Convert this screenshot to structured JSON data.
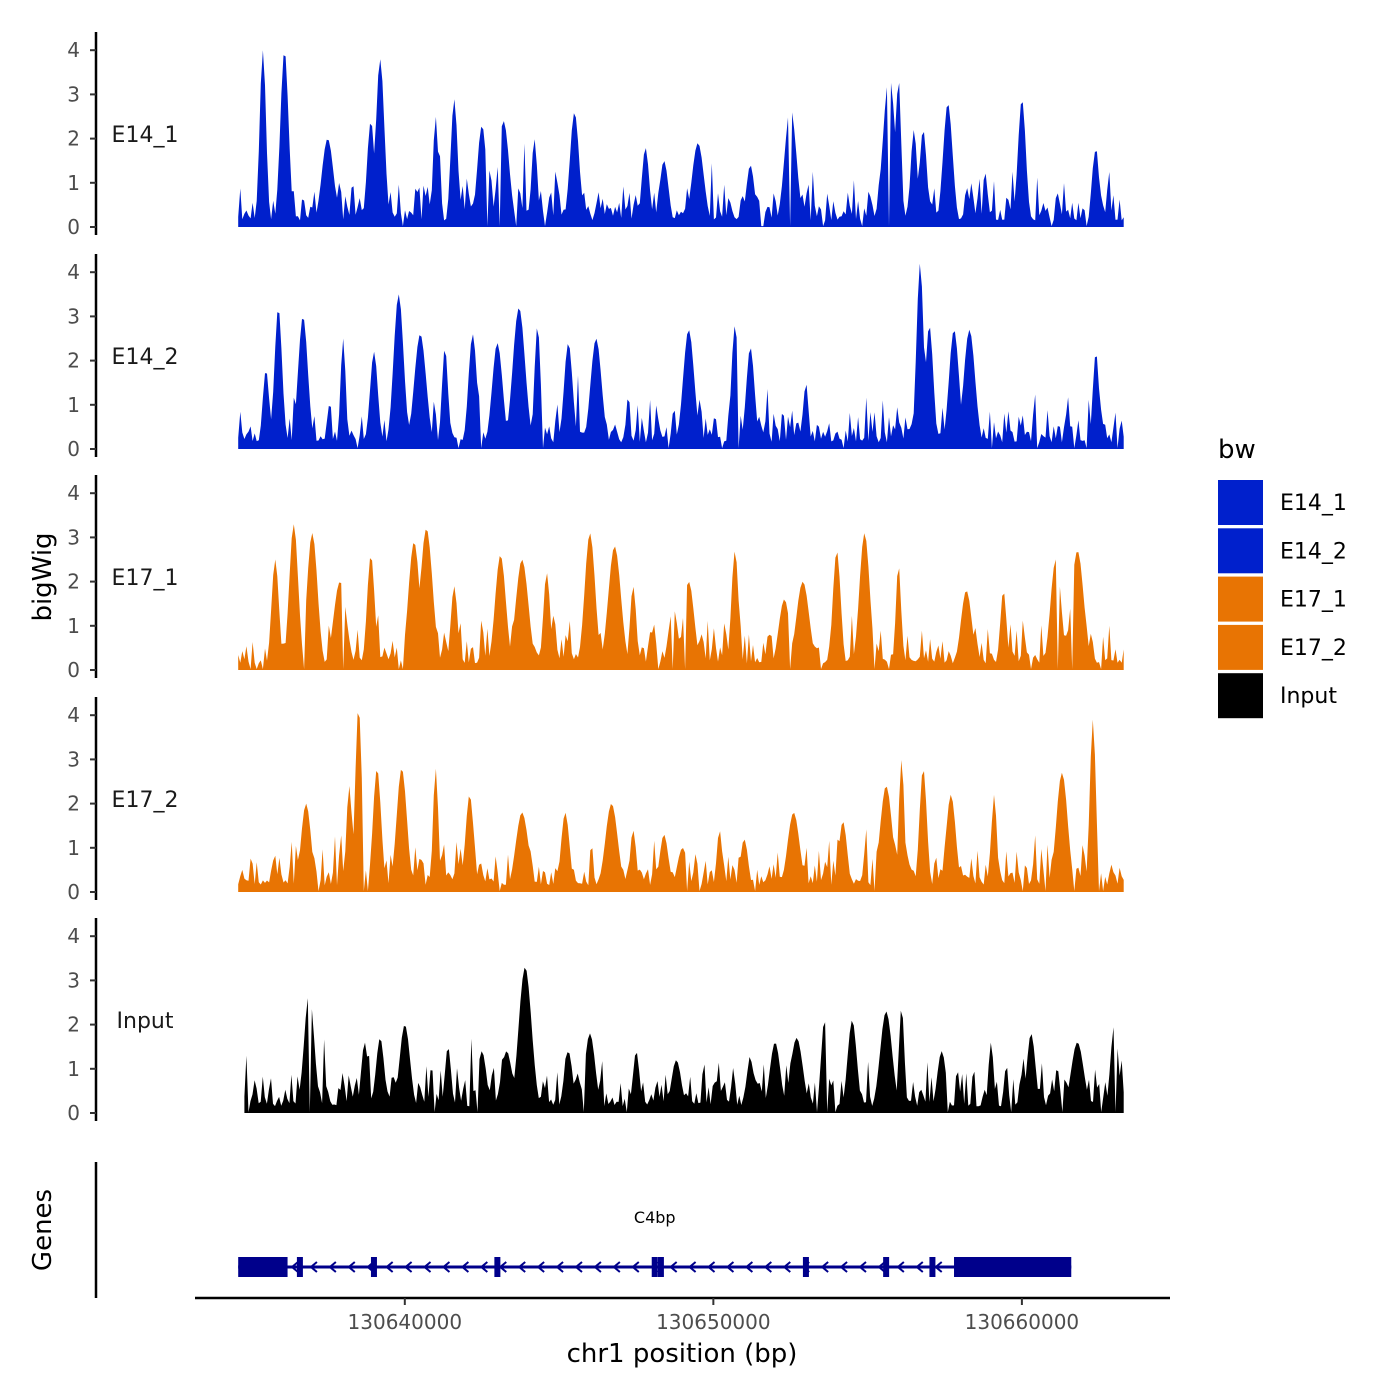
{
  "chart_data": {
    "type": "area",
    "ylabel": "bigWig",
    "xlabel": "chr1 position (bp)",
    "genes_label": "Genes",
    "ylim": [
      0,
      4.4
    ],
    "xlim": [
      130633200,
      130664800
    ],
    "y_ticks": [
      "0",
      "1",
      "2",
      "3",
      "4"
    ],
    "x_ticks": [
      {
        "value": 130640000,
        "label": "130640000"
      },
      {
        "value": 130650000,
        "label": "130650000"
      },
      {
        "value": 130660000,
        "label": "130660000"
      }
    ],
    "series": [
      {
        "name": "E14_1",
        "label": "E14_1",
        "color": "#0020CC",
        "start": 130634600,
        "end": 130663300,
        "seed": 11,
        "peaks": [
          [
            130635400,
            4.0
          ],
          [
            130636100,
            4.0
          ],
          [
            130637500,
            2.0
          ],
          [
            130638900,
            2.4
          ],
          [
            130639200,
            3.8
          ],
          [
            130641000,
            2.5
          ],
          [
            130641600,
            2.9
          ],
          [
            130642500,
            2.3
          ],
          [
            130643200,
            2.4
          ],
          [
            130644200,
            2.0
          ],
          [
            130645500,
            2.6
          ],
          [
            130647800,
            1.8
          ],
          [
            130648400,
            1.5
          ],
          [
            130649500,
            1.9
          ],
          [
            130651200,
            1.4
          ],
          [
            130652500,
            2.7
          ],
          [
            130655700,
            3.4
          ],
          [
            130656000,
            3.4
          ],
          [
            130656500,
            2.2
          ],
          [
            130656800,
            2.2
          ],
          [
            130657600,
            2.8
          ],
          [
            130660000,
            2.9
          ],
          [
            130662400,
            1.8
          ]
        ]
      },
      {
        "name": "E14_2",
        "label": "E14_2",
        "color": "#0020CC",
        "start": 130634600,
        "end": 130663300,
        "seed": 23,
        "peaks": [
          [
            130635500,
            1.8
          ],
          [
            130635900,
            3.2
          ],
          [
            130636700,
            3.0
          ],
          [
            130638000,
            2.5
          ],
          [
            130639000,
            2.2
          ],
          [
            130639800,
            3.5
          ],
          [
            130640500,
            2.6
          ],
          [
            130641300,
            2.3
          ],
          [
            130642200,
            2.6
          ],
          [
            130643000,
            2.4
          ],
          [
            130643700,
            3.2
          ],
          [
            130644300,
            2.8
          ],
          [
            130645300,
            2.4
          ],
          [
            130646200,
            2.5
          ],
          [
            130648200,
            0.5
          ],
          [
            130649200,
            2.7
          ],
          [
            130650700,
            2.8
          ],
          [
            130651200,
            2.3
          ],
          [
            130653000,
            1.5
          ],
          [
            130656700,
            4.2
          ],
          [
            130657000,
            2.8
          ],
          [
            130657800,
            2.7
          ],
          [
            130658300,
            2.7
          ],
          [
            130662400,
            2.2
          ]
        ]
      },
      {
        "name": "E17_1",
        "label": "E17_1",
        "color": "#E87403",
        "start": 130634600,
        "end": 130663300,
        "seed": 37,
        "peaks": [
          [
            130635800,
            2.5
          ],
          [
            130636400,
            3.3
          ],
          [
            130637000,
            3.1
          ],
          [
            130637900,
            2.0
          ],
          [
            130638900,
            2.6
          ],
          [
            130640300,
            2.9
          ],
          [
            130640700,
            3.2
          ],
          [
            130641600,
            1.9
          ],
          [
            130643100,
            2.6
          ],
          [
            130643800,
            2.5
          ],
          [
            130644600,
            2.2
          ],
          [
            130646000,
            3.1
          ],
          [
            130646800,
            2.8
          ],
          [
            130647400,
            1.9
          ],
          [
            130648700,
            1.4
          ],
          [
            130649200,
            2.0
          ],
          [
            130650700,
            2.7
          ],
          [
            130652300,
            1.6
          ],
          [
            130652900,
            2.0
          ],
          [
            130654000,
            2.7
          ],
          [
            130654900,
            3.1
          ],
          [
            130656000,
            2.4
          ],
          [
            130658200,
            1.8
          ],
          [
            130659400,
            1.8
          ],
          [
            130661100,
            2.5
          ],
          [
            130661800,
            2.7
          ]
        ]
      },
      {
        "name": "E17_2",
        "label": "E17_2",
        "color": "#E87403",
        "start": 130634600,
        "end": 130663300,
        "seed": 53,
        "peaks": [
          [
            130636800,
            2.0
          ],
          [
            130638200,
            2.4
          ],
          [
            130638500,
            4.2
          ],
          [
            130639100,
            2.8
          ],
          [
            130639900,
            2.8
          ],
          [
            130641000,
            2.8
          ],
          [
            130642100,
            2.2
          ],
          [
            130643800,
            1.8
          ],
          [
            130645200,
            1.8
          ],
          [
            130646700,
            2.0
          ],
          [
            130647400,
            1.4
          ],
          [
            130648400,
            1.3
          ],
          [
            130649000,
            1.0
          ],
          [
            130650200,
            1.4
          ],
          [
            130651000,
            1.2
          ],
          [
            130652600,
            1.8
          ],
          [
            130654200,
            1.6
          ],
          [
            130655600,
            2.4
          ],
          [
            130656100,
            3.0
          ],
          [
            130656800,
            2.8
          ],
          [
            130657700,
            2.2
          ],
          [
            130659100,
            2.2
          ],
          [
            130661300,
            2.7
          ],
          [
            130662300,
            3.9
          ]
        ]
      },
      {
        "name": "Input",
        "label": "Input",
        "color": "#000000",
        "start": 130634800,
        "end": 130663300,
        "seed": 71,
        "peaks": [
          [
            130636900,
            2.7
          ],
          [
            130638700,
            1.6
          ],
          [
            130639200,
            1.7
          ],
          [
            130640000,
            2.0
          ],
          [
            130641400,
            1.5
          ],
          [
            130642500,
            1.4
          ],
          [
            130643300,
            1.4
          ],
          [
            130643900,
            3.3
          ],
          [
            130645300,
            1.4
          ],
          [
            130646000,
            1.8
          ],
          [
            130647500,
            1.4
          ],
          [
            130648800,
            1.2
          ],
          [
            130651200,
            1.2
          ],
          [
            130652000,
            1.6
          ],
          [
            130652700,
            1.7
          ],
          [
            130653600,
            2.1
          ],
          [
            130654500,
            2.1
          ],
          [
            130655600,
            2.3
          ],
          [
            130656100,
            2.4
          ],
          [
            130657400,
            1.4
          ],
          [
            130659000,
            1.6
          ],
          [
            130660300,
            1.8
          ],
          [
            130661800,
            1.6
          ],
          [
            130663000,
            2.0
          ]
        ]
      }
    ],
    "legend": {
      "title": "bw",
      "entries": [
        {
          "label": "E14_1",
          "color": "#0020CC"
        },
        {
          "label": "E14_2",
          "color": "#0020CC"
        },
        {
          "label": "E17_1",
          "color": "#E87403"
        },
        {
          "label": "E17_2",
          "color": "#E87403"
        },
        {
          "label": "Input",
          "color": "#000000"
        }
      ]
    },
    "gene": {
      "name": "C4bp",
      "strand": "-",
      "color": "#00008B",
      "start": 130634600,
      "end": 130661600,
      "thick_blocks": [
        [
          130634600,
          130636200
        ],
        [
          130657800,
          130661600
        ]
      ],
      "exons": [
        130636600,
        130639000,
        130643000,
        130648100,
        130648300,
        130653000,
        130655600,
        130657100
      ]
    }
  }
}
